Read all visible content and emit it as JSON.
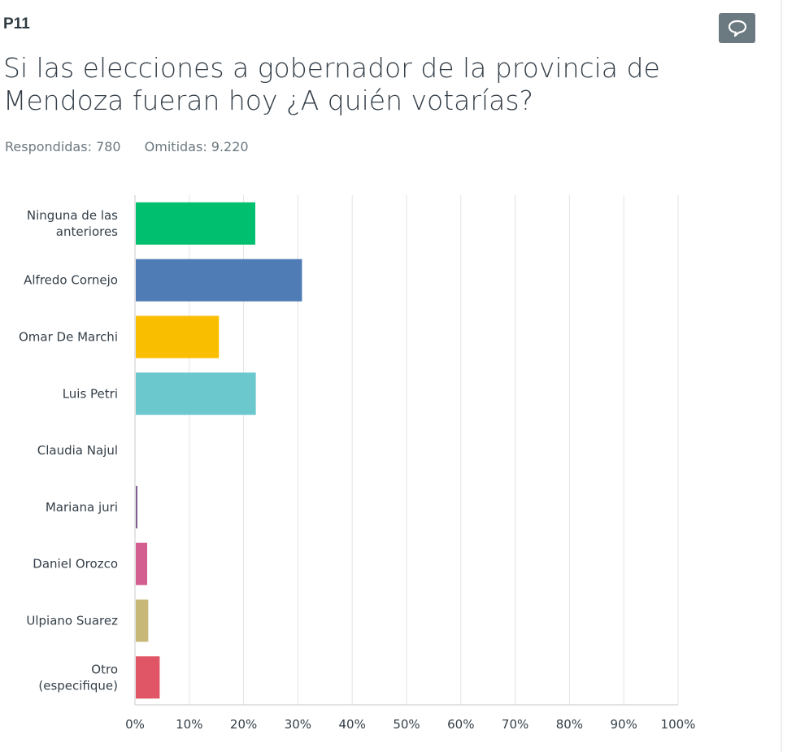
{
  "question": {
    "number": "P11",
    "title": "Si las elecciones a gobernador de la provincia de Mendoza fueran hoy ¿A quién votarías?",
    "answered": "Respondidas: 780",
    "skipped": "Omitidas: 9.220",
    "comment_icon": "speech-bubble-icon"
  },
  "chart_data": {
    "type": "bar",
    "orientation": "horizontal",
    "categories": [
      [
        "Ninguna de las",
        "anteriores"
      ],
      [
        "Alfredo Cornejo"
      ],
      [
        "Omar De Marchi"
      ],
      [
        "Luis Petri"
      ],
      [
        "Claudia Najul"
      ],
      [
        "Mariana juri"
      ],
      [
        "Daniel Orozco"
      ],
      [
        "Ulpiano Suarez"
      ],
      [
        "Otro",
        "(especifique)"
      ]
    ],
    "values": [
      22.0,
      30.6,
      15.3,
      22.1,
      0,
      0.3,
      2.1,
      2.3,
      4.4
    ],
    "colors": [
      "#00bf6f",
      "#507cb6",
      "#f9be00",
      "#6bc8cd",
      "#ff8b4f",
      "#7d5e90",
      "#d25f90",
      "#c8b878",
      "#e05666"
    ],
    "xlim": [
      0,
      100
    ],
    "xticks": [
      "0%",
      "10%",
      "20%",
      "30%",
      "40%",
      "50%",
      "60%",
      "70%",
      "80%",
      "90%",
      "100%"
    ],
    "grid": true
  }
}
